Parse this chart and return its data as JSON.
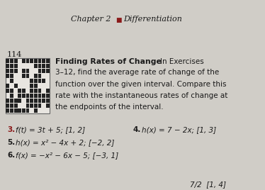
{
  "bg_color": "#d0cdc7",
  "page_number": "114",
  "header_bullet_color": "#8b1a1a",
  "exercise3_color": "#8b1a1a",
  "text_color": "#1a1a1a",
  "qr_color": "#222222",
  "qr_bg": "#c8c5bf",
  "header_line": "Chapter 2  ■  Differentiation",
  "section_bold": "Finding Rates of Change",
  "section_normal": "In Exercises",
  "body_lines": [
    "3–12, find the average rate of change of the",
    "function over the given interval. Compare this",
    "rate with the instantaneous rates of change at",
    "the endpoints of the interval."
  ],
  "ex3_num": "3.",
  "ex3_text": "f(t) = 3t + 5; [1, 2]",
  "ex4_num": "4.",
  "ex4_text": "h(x) = 7 − 2x; [1, 3]",
  "ex5_num": "5.",
  "ex5_text": "h(x) = x² − 4x + 2; [−2, 2]",
  "ex6_num": "6.",
  "ex6_text": "f(x) = −x² − 6x − 5; [−3, 1]",
  "bottom_text": "7/2  [1, 4]"
}
